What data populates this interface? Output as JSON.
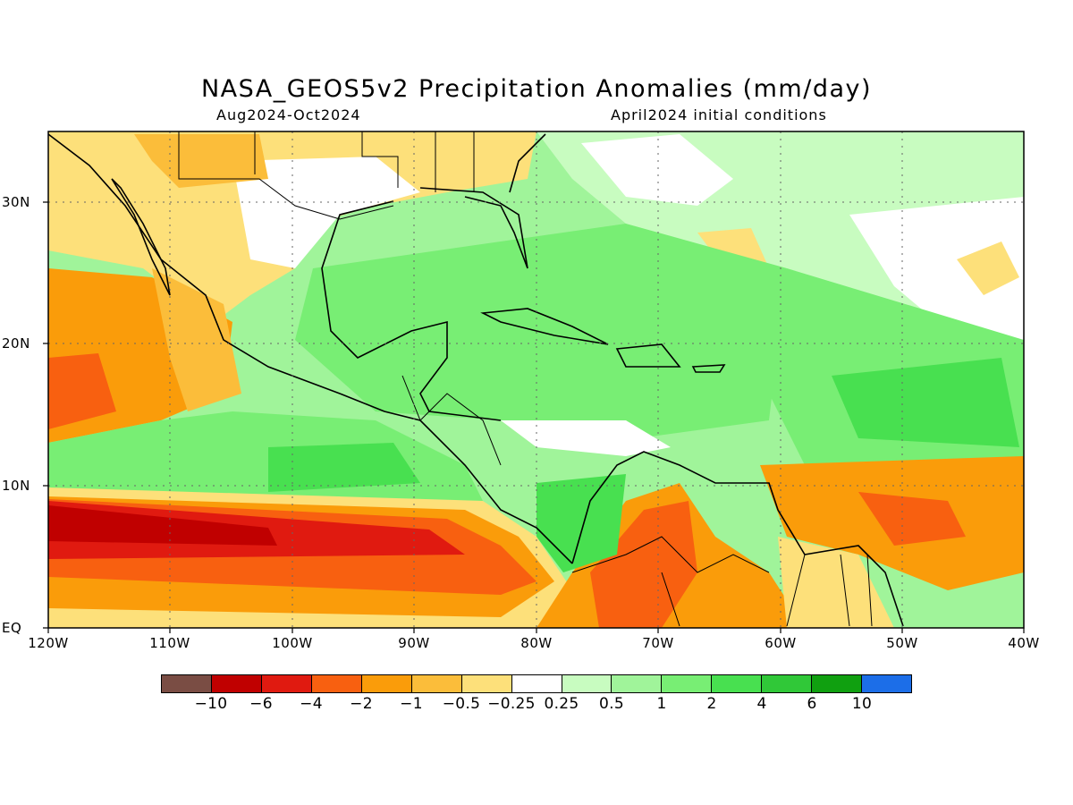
{
  "title": "NASA_GEOS5v2 Precipitation Anomalies (mm/day)",
  "subtitle_left": "Aug2024-Oct2024",
  "subtitle_right": "April2024 initial conditions",
  "x_ticks": [
    "120W",
    "110W",
    "100W",
    "90W",
    "80W",
    "70W",
    "60W",
    "50W",
    "40W"
  ],
  "y_ticks": [
    "30N",
    "20N",
    "10N",
    "EQ"
  ],
  "map_extent": {
    "lon": [
      -120,
      -40
    ],
    "lat": [
      0,
      35
    ]
  },
  "colorbar": {
    "colors": [
      "#7a4d44",
      "#c00000",
      "#e01a10",
      "#f86010",
      "#fa9c0a",
      "#fbbd3a",
      "#fde07a",
      "#ffffff",
      "#c8fcc0",
      "#a0f49a",
      "#78ee74",
      "#48e050",
      "#30c838",
      "#10a010",
      "#1c6ee8"
    ],
    "labels": [
      "-10",
      "-6",
      "-4",
      "-2",
      "-1",
      "-0.5",
      "-0.25",
      "0.25",
      "0.5",
      "1",
      "2",
      "4",
      "6",
      "10"
    ]
  }
}
